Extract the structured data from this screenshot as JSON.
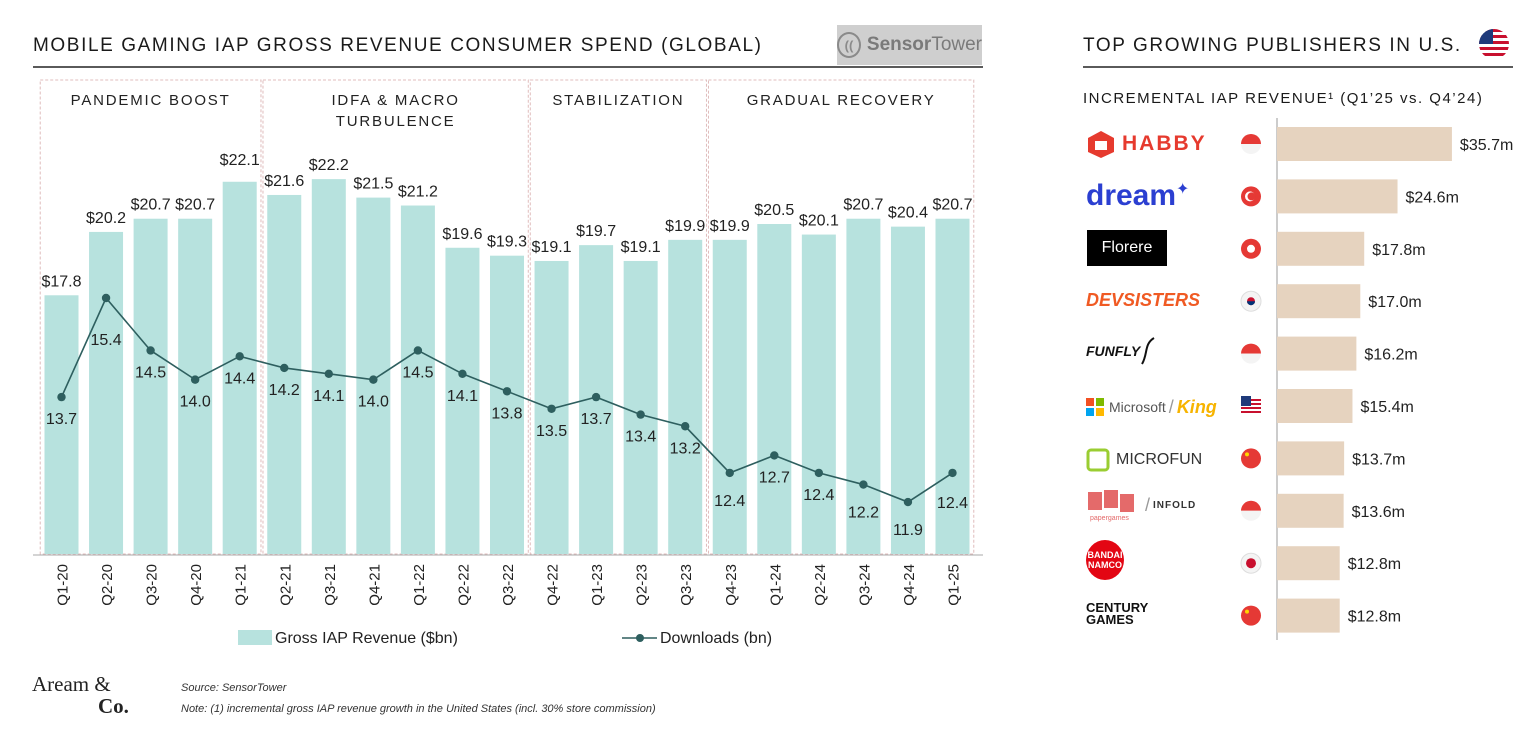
{
  "left_title": "MOBILE GAMING IAP GROSS REVENUE CONSUMER SPEND (GLOBAL)",
  "right_title": "TOP GROWING PUBLISHERS IN U.S.",
  "source_logo": {
    "word1": "Sensor",
    "word2": "Tower",
    "icon": "sensor-tower-icon"
  },
  "right_subtitle": "INCREMENTAL IAP REVENUE¹ (Q1’25 vs. Q4’24)",
  "brand": {
    "line1": "Aream &",
    "line2": "Co."
  },
  "footnotes": {
    "source": "Source: SensorTower",
    "note": "Note: (1) incremental gross IAP revenue growth in the United States (incl. 30% store commission)"
  },
  "colors": {
    "bar": "#b7e2de",
    "line": "#2e5f5f",
    "period_border": "#e0bcbc",
    "pub_bar": "#e6d3bf"
  },
  "chart_data": [
    {
      "type": "bar+line",
      "title": "MOBILE GAMING IAP GROSS REVENUE CONSUMER SPEND (GLOBAL)",
      "categories": [
        "Q1-20",
        "Q2-20",
        "Q3-20",
        "Q4-20",
        "Q1-21",
        "Q2-21",
        "Q3-21",
        "Q4-21",
        "Q1-22",
        "Q2-22",
        "Q3-22",
        "Q4-22",
        "Q1-23",
        "Q2-23",
        "Q3-23",
        "Q4-23",
        "Q1-24",
        "Q2-24",
        "Q3-24",
        "Q4-24",
        "Q1-25"
      ],
      "series": [
        {
          "name": "Gross IAP Revenue ($bn)",
          "type": "bar",
          "values": [
            17.8,
            20.2,
            20.7,
            20.7,
            22.1,
            21.6,
            22.2,
            21.5,
            21.2,
            19.6,
            19.3,
            19.1,
            19.7,
            19.1,
            19.9,
            19.9,
            20.5,
            20.1,
            20.7,
            20.4,
            20.7
          ],
          "labels": [
            "$17.8",
            "$20.2",
            "$20.7",
            "$20.7",
            "$22.1",
            "$21.6",
            "$22.2",
            "$21.5",
            "$21.2",
            "$19.6",
            "$19.3",
            "$19.1",
            "$19.7",
            "$19.1",
            "$19.9",
            "$19.9",
            "$20.5",
            "$20.1",
            "$20.7",
            "$20.4",
            "$20.7"
          ]
        },
        {
          "name": "Downloads (bn)",
          "type": "line",
          "values": [
            13.7,
            15.4,
            14.5,
            14.0,
            14.4,
            14.2,
            14.1,
            14.0,
            14.5,
            14.1,
            13.8,
            13.5,
            13.7,
            13.4,
            13.2,
            12.4,
            12.7,
            12.4,
            12.2,
            11.9,
            12.4
          ],
          "labels": [
            "13.7",
            "15.4",
            "14.5",
            "14.0",
            "14.4",
            "14.2",
            "14.1",
            "14.0",
            "14.5",
            "14.1",
            "13.8",
            "13.5",
            "13.7",
            "13.4",
            "13.2",
            "12.4",
            "12.7",
            "12.4",
            "12.2",
            "11.9",
            "12.4"
          ]
        }
      ],
      "periods": [
        {
          "label": [
            "PANDEMIC BOOST"
          ],
          "start": 0,
          "end": 4
        },
        {
          "label": [
            "IDFA & MACRO",
            "TURBULENCE"
          ],
          "start": 5,
          "end": 10
        },
        {
          "label": [
            "STABILIZATION"
          ],
          "start": 11,
          "end": 14
        },
        {
          "label": [
            "GRADUAL RECOVERY"
          ],
          "start": 15,
          "end": 20
        }
      ],
      "legend": {
        "position": "bottom",
        "bar_label": "Gross IAP Revenue ($bn)",
        "line_label": "Downloads (bn)"
      },
      "grid": false
    },
    {
      "type": "bar",
      "orientation": "horizontal",
      "title": "TOP GROWING PUBLISHERS IN U.S.",
      "subtitle": "INCREMENTAL IAP REVENUE¹ (Q1’25 vs. Q4’24)",
      "categories": [
        "HABBY",
        "dream",
        "Florere",
        "DEVSISTERS",
        "FUNFLY",
        "Microsoft / King",
        "MICROFUN",
        "Papergames / Infold",
        "BANDAI NAMCO",
        "CENTURY GAMES"
      ],
      "values": [
        35.7,
        24.6,
        17.8,
        17.0,
        16.2,
        15.4,
        13.7,
        13.6,
        12.8,
        12.8
      ],
      "labels": [
        "$35.7m",
        "$24.6m",
        "$17.8m",
        "$17.0m",
        "$16.2m",
        "$15.4m",
        "$13.7m",
        "$13.6m",
        "$12.8m",
        "$12.8m"
      ],
      "countries": [
        "singapore-flag",
        "turkey-flag",
        "hong-kong-flag",
        "south-korea-flag",
        "singapore-flag",
        "usa-flag",
        "china-flag",
        "singapore-flag",
        "japan-flag",
        "china-flag"
      ]
    }
  ],
  "publisher_logos": [
    {
      "text": "HABBY",
      "icon": "habby-logo-icon"
    },
    {
      "text": "dream",
      "icon": "dream-sparkle-icon"
    },
    {
      "text": "Florere",
      "icon": ""
    },
    {
      "text": "DEVSISTERS",
      "icon": ""
    },
    {
      "text": "FUNFLY",
      "icon": "funfly-logo-icon"
    },
    {
      "text": "Microsoft",
      "text2": "King",
      "icon": "microsoft-logo-icon"
    },
    {
      "text": "MICROFUN",
      "icon": "microfun-logo-icon"
    },
    {
      "text": "papergames",
      "text2": "INFOLD",
      "icon": "papergames-logo-icon"
    },
    {
      "text": "BANDAI",
      "text2": "NAMCO",
      "icon": "bandai-namco-logo-icon"
    },
    {
      "text": "CENTURY",
      "text2": "GAMES",
      "icon": ""
    }
  ]
}
